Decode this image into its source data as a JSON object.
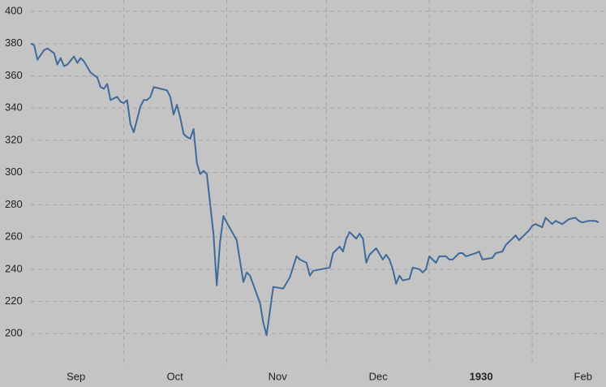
{
  "chart_data": {
    "type": "line",
    "color": "#3f6b9b",
    "grid": true,
    "x": [
      2,
      3,
      4,
      6,
      7,
      9,
      10,
      11,
      12,
      13,
      15,
      16,
      17,
      18,
      20,
      22,
      23,
      24,
      25,
      26,
      28,
      29,
      30,
      31,
      32,
      33,
      35,
      36,
      37,
      38,
      39,
      41,
      43,
      44,
      45,
      46,
      47,
      48,
      49,
      50,
      51,
      52,
      53,
      54,
      55,
      57,
      58,
      59,
      60,
      61,
      64,
      66,
      67,
      68,
      71,
      72,
      73,
      75,
      78,
      80,
      82,
      83,
      85,
      86,
      87,
      92,
      93,
      95,
      96,
      97,
      98,
      99,
      100,
      101,
      102,
      103,
      104,
      106,
      108,
      109,
      110,
      111,
      112,
      113,
      114,
      116,
      117,
      119,
      120,
      121,
      122,
      124,
      125,
      127,
      128,
      129,
      131,
      132,
      133,
      136,
      137,
      138,
      141,
      142,
      144,
      145,
      147,
      148,
      149,
      151,
      152,
      153,
      154,
      156,
      157,
      159,
      160,
      162,
      164,
      166,
      167,
      168,
      170,
      172,
      173
    ],
    "values": [
      380,
      379,
      370,
      376,
      377,
      374,
      367,
      371,
      366,
      367,
      372,
      368,
      371,
      369,
      362,
      359,
      353,
      352,
      355,
      345,
      347,
      344,
      343,
      345,
      330,
      325,
      341,
      345,
      345,
      347,
      353,
      352,
      351,
      347,
      336,
      342,
      334,
      324,
      322,
      321,
      327,
      306,
      299,
      301,
      299,
      262,
      230,
      257,
      273,
      269,
      258,
      232,
      238,
      236,
      219,
      207,
      199,
      229,
      228,
      235,
      248,
      246,
      244,
      236,
      239,
      241,
      250,
      254,
      251,
      259,
      263,
      261,
      259,
      262,
      259,
      244,
      249,
      253,
      246,
      249,
      246,
      240,
      231,
      236,
      233,
      234,
      241,
      240,
      238,
      240,
      248,
      244,
      248,
      248,
      246,
      246,
      250,
      250,
      248,
      250,
      251,
      246,
      247,
      250,
      251,
      255,
      259,
      261,
      258,
      262,
      264,
      267,
      268,
      266,
      272,
      268,
      270,
      268,
      271,
      272,
      270,
      269,
      270,
      270,
      269
    ],
    "xlim": [
      2,
      173
    ],
    "ylim": [
      180,
      400
    ],
    "yticks": [
      200,
      220,
      240,
      260,
      280,
      300,
      320,
      340,
      360,
      380,
      400
    ],
    "xgrid": [
      30,
      61,
      91,
      122,
      153
    ],
    "xticks": [
      {
        "value": 15.6,
        "label": "Sep"
      },
      {
        "value": 45.4,
        "label": "Oct"
      },
      {
        "value": 76.3,
        "label": "Nov"
      },
      {
        "value": 106.6,
        "label": "Dec"
      },
      {
        "value": 137.6,
        "label": "1930",
        "bold": true
      },
      {
        "value": 168.3,
        "label": "Feb"
      }
    ]
  }
}
